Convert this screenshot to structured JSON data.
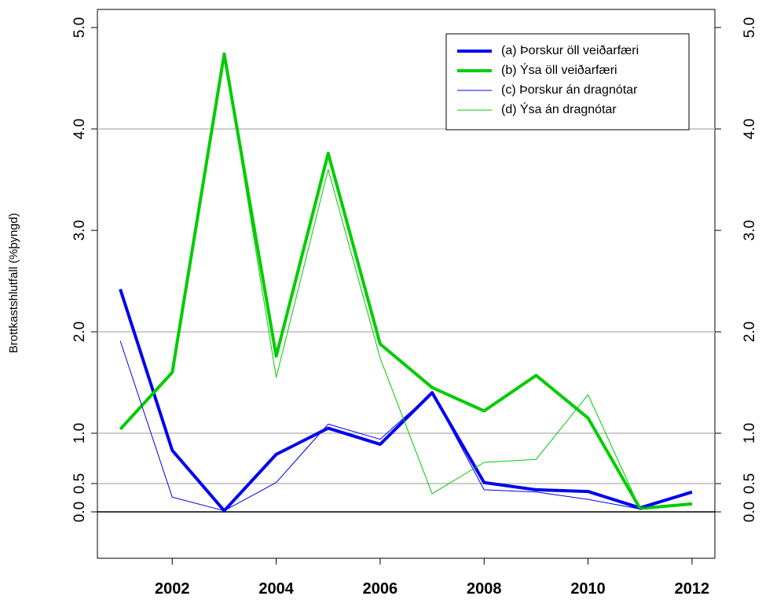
{
  "chart_data": {
    "type": "line",
    "y_label": "Brottkastshlutfall (%þyngd)",
    "x": [
      2001,
      2002,
      2003,
      2004,
      2005,
      2006,
      2007,
      2008,
      2009,
      2010,
      2011,
      2012
    ],
    "series": [
      {
        "name": "(a) Þorskur öll veiðarfæri",
        "color": "#0000ee",
        "width": 4,
        "values": [
          2.42,
          0.83,
          0.02,
          0.79,
          1.05,
          0.89,
          1.4,
          0.51,
          0.39,
          0.36,
          0.07,
          0.35
        ]
      },
      {
        "name": "(b) Ýsa öll veiðarfæri",
        "color": "#00cc00",
        "width": 4,
        "values": [
          1.04,
          1.6,
          4.74,
          1.76,
          3.76,
          1.88,
          1.45,
          1.22,
          1.57,
          1.15,
          0.06,
          0.14
        ]
      },
      {
        "name": "(c) Þorskur án dragnótar",
        "color": "#0000ee",
        "width": 1,
        "values": [
          1.91,
          0.26,
          0.02,
          0.51,
          1.09,
          0.94,
          1.4,
          0.39,
          0.35,
          0.22,
          0.05,
          0.35
        ]
      },
      {
        "name": "(d) Ýsa án dragnótar",
        "color": "#00cc00",
        "width": 1,
        "values": [
          1.04,
          1.6,
          4.74,
          1.55,
          3.6,
          1.74,
          0.32,
          0.71,
          0.74,
          1.38,
          0.06,
          0.14
        ]
      }
    ],
    "xlim": [
      2000.56,
      2012.44
    ],
    "xticks": [
      2002,
      2004,
      2006,
      2008,
      2010,
      2012
    ],
    "yticks": [
      {
        "value": 0,
        "label": "0.0"
      },
      0.5,
      {
        "value": 1,
        "label": "1.0"
      },
      {
        "value": 2,
        "label": "2.0"
      },
      {
        "value": 3,
        "label": "3.0"
      },
      {
        "value": 4,
        "label": "4.0"
      },
      {
        "value": 5,
        "label": "5.0"
      }
    ],
    "grid_lines": [
      0.5,
      1,
      2,
      4
    ],
    "zero_line": 0,
    "right_axis": true,
    "legend": "top-right"
  }
}
